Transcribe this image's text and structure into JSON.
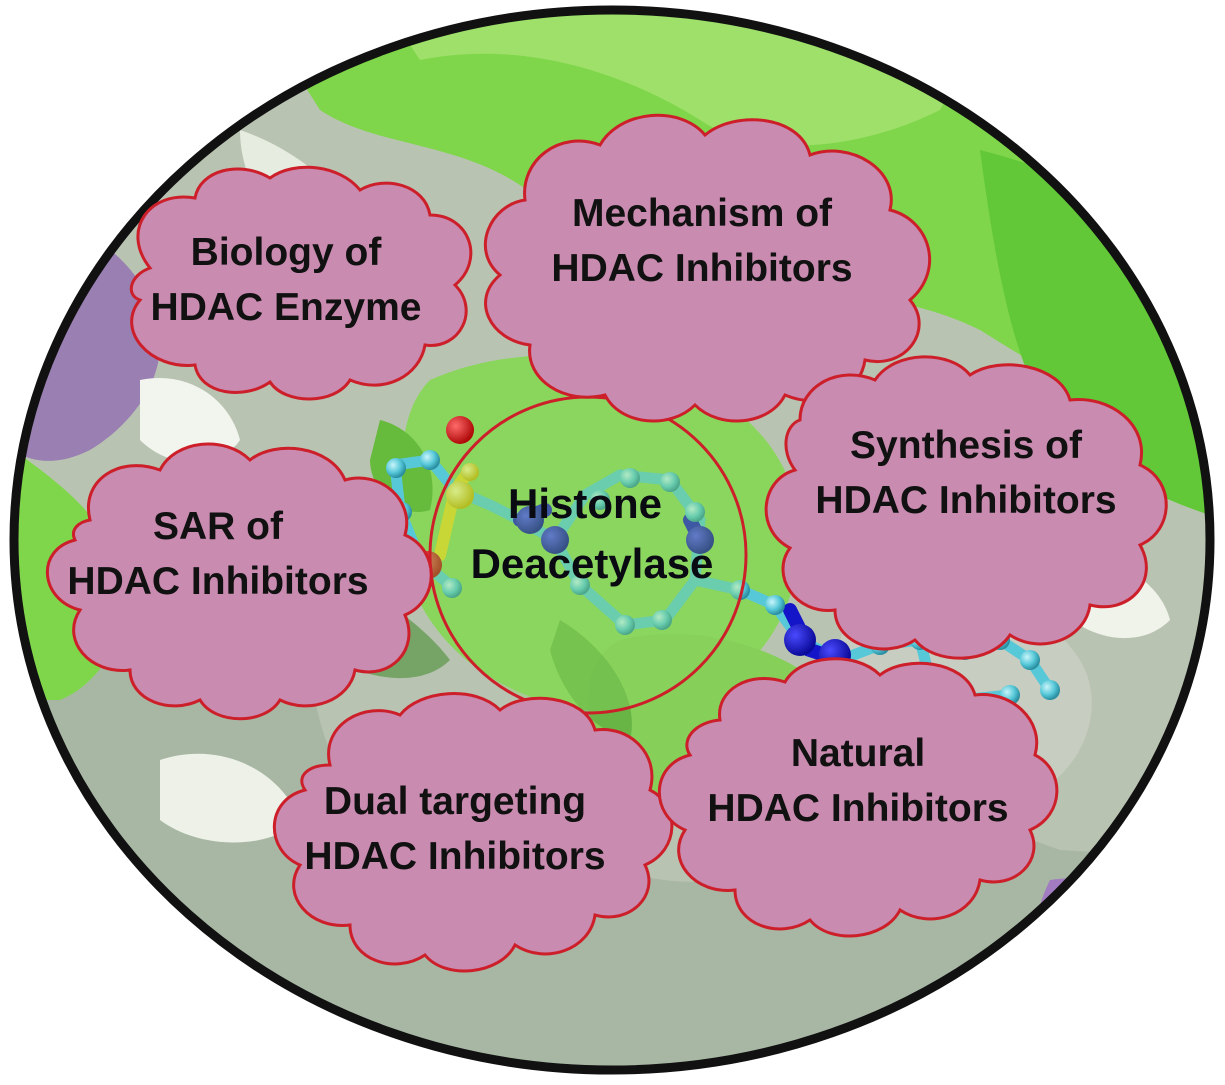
{
  "center": {
    "line1": "Histone",
    "line2": "Deacetylase"
  },
  "topics": {
    "biology": {
      "line1": "Biology of",
      "line2": "HDAC Enzyme"
    },
    "mechanism": {
      "line1": "Mechanism of",
      "line2": "HDAC Inhibitors"
    },
    "synthesis": {
      "line1": "Synthesis of",
      "line2": "HDAC Inhibitors"
    },
    "sar": {
      "line1": "SAR of",
      "line2": "HDAC Inhibitors"
    },
    "dual": {
      "line1": "Dual targeting",
      "line2": "HDAC Inhibitors"
    },
    "natural": {
      "line1": "Natural",
      "line2": "HDAC Inhibitors"
    }
  },
  "colors": {
    "cloud_fill": "#c98bb0",
    "cloud_stroke": "#cc1f2a",
    "outer_ring": "#111111",
    "surface_green": "#7fd64a",
    "surface_grey": "#b9c3b2",
    "ligand_carbon": "#56c8d8",
    "ligand_nitrogen": "#1414c8",
    "ligand_oxygen": "#d81818",
    "ligand_sulfur": "#e8d820"
  }
}
